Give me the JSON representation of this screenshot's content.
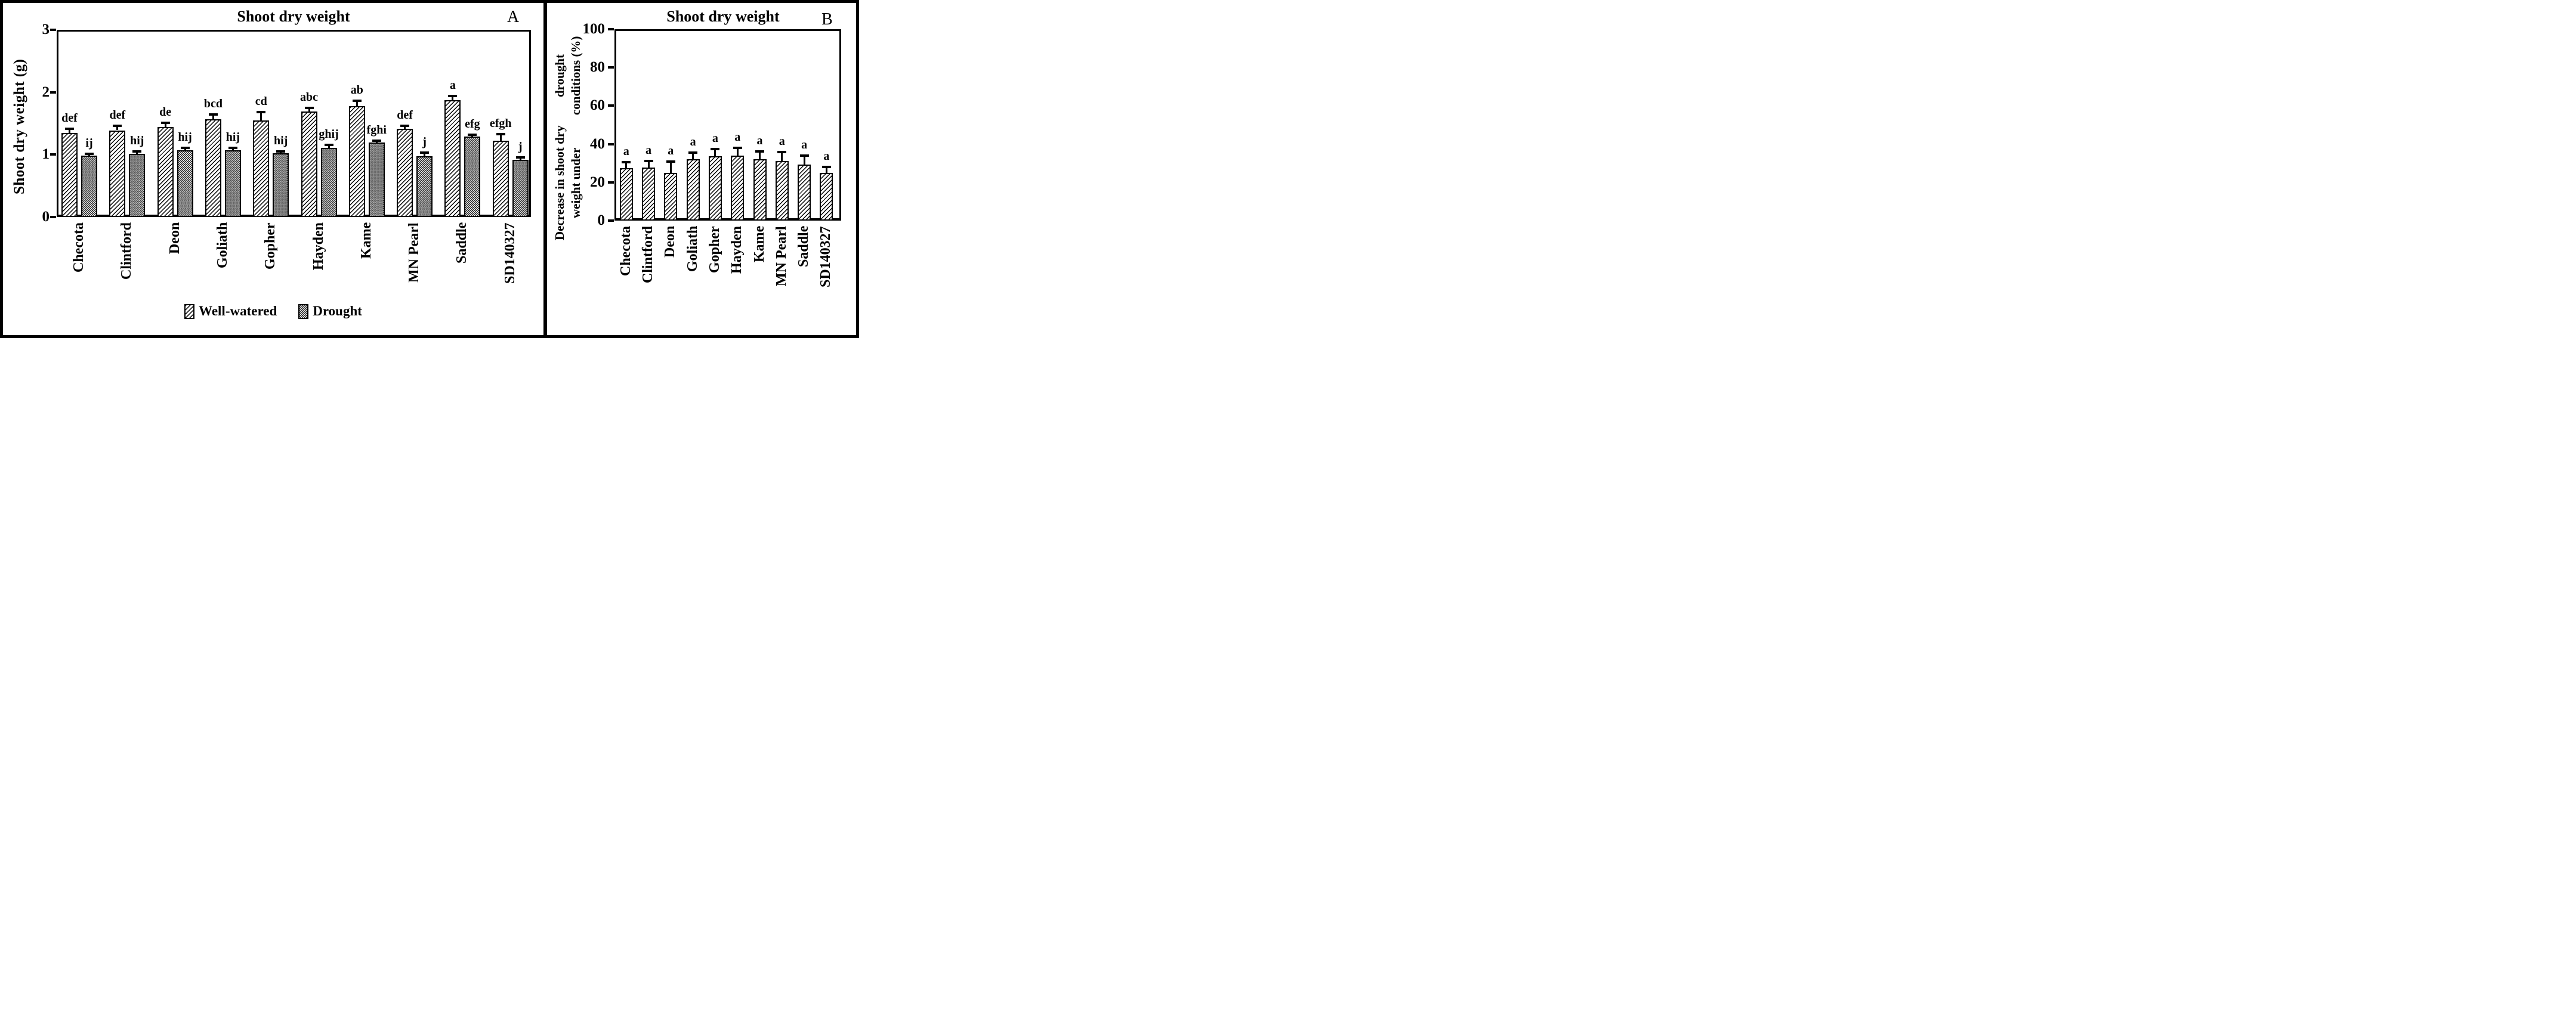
{
  "chart_data": [
    {
      "panel_label": "A",
      "type": "bar",
      "title": "Shoot dry weight",
      "ylabel": "Shoot dry weight (g)",
      "ylim": [
        0,
        3
      ],
      "yticks": [
        3,
        2,
        1,
        0
      ],
      "grid": false,
      "legend_position": "bottom",
      "categories": [
        "Checota",
        "Clintford",
        "Deon",
        "Goliath",
        "Gopher",
        "Hayden",
        "Kame",
        "MN Pearl",
        "Saddle",
        "SD140327"
      ],
      "series": [
        {
          "name": "Well-watered",
          "pattern": "diagonal-hatch",
          "values": [
            1.35,
            1.39,
            1.44,
            1.57,
            1.55,
            1.69,
            1.78,
            1.41,
            1.87,
            1.22
          ],
          "errors": [
            0.05,
            0.06,
            0.06,
            0.06,
            0.12,
            0.05,
            0.07,
            0.04,
            0.06,
            0.1
          ],
          "letters": [
            "def",
            "def",
            "de",
            "bcd",
            "cd",
            "abc",
            "ab",
            "def",
            "a",
            "efgh"
          ]
        },
        {
          "name": "Drought",
          "pattern": "dot-grid",
          "values": [
            0.98,
            1.01,
            1.07,
            1.07,
            1.02,
            1.11,
            1.19,
            0.97,
            1.29,
            0.92
          ],
          "errors": [
            0.02,
            0.03,
            0.03,
            0.03,
            0.02,
            0.04,
            0.02,
            0.05,
            0.02,
            0.03
          ],
          "letters": [
            "ij",
            "hij",
            "hij",
            "hij",
            "hij",
            "ghij",
            "fghi",
            "j",
            "efg",
            "j"
          ]
        }
      ]
    },
    {
      "panel_label": "B",
      "type": "bar",
      "title": "Shoot dry weight",
      "ylabel_line1": "Decrease in shoot dry weight under",
      "ylabel_line2": "drought conditions (%)",
      "ylim": [
        0,
        100
      ],
      "yticks": [
        100,
        80,
        60,
        40,
        20,
        0
      ],
      "grid": false,
      "legend_position": "none",
      "categories": [
        "Checota",
        "Clintford",
        "Deon",
        "Goliath",
        "Gopher",
        "Hayden",
        "Kame",
        "MN Pearl",
        "Saddle",
        "SD140327"
      ],
      "series": [
        {
          "name": "Decrease under drought",
          "pattern": "diagonal-hatch",
          "values": [
            27.5,
            27.8,
            25.0,
            32.2,
            33.7,
            34.0,
            32.1,
            31.2,
            29.3,
            25.0
          ],
          "errors": [
            2.8,
            3.0,
            5.6,
            2.9,
            3.5,
            3.8,
            3.6,
            4.4,
            4.4,
            2.6
          ],
          "letters": [
            "a",
            "a",
            "a",
            "a",
            "a",
            "a",
            "a",
            "a",
            "a",
            "a"
          ]
        }
      ]
    }
  ]
}
